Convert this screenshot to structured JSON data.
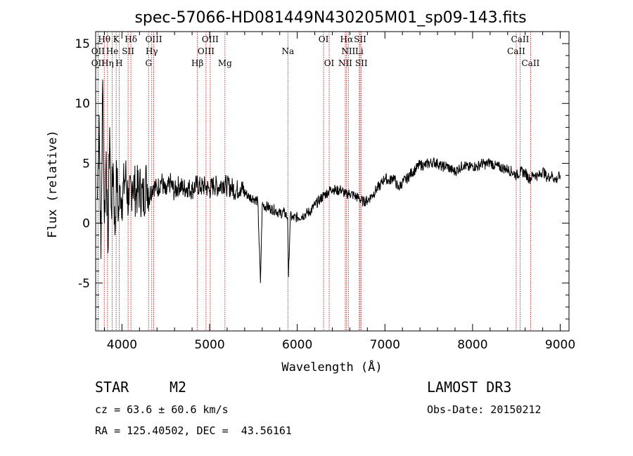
{
  "chart_data": {
    "type": "line",
    "title": "spec-57066-HD081449N430205M01_sp09-143.fits",
    "xlabel": "Wavelength (Å)",
    "ylabel": "Flux (relative)",
    "xlim": [
      3700,
      9100
    ],
    "ylim": [
      -9,
      16
    ],
    "x_ticks": [
      4000,
      5000,
      6000,
      7000,
      8000,
      9000
    ],
    "y_ticks": [
      -5,
      0,
      5,
      10,
      15
    ],
    "grid": false,
    "legend": "none",
    "line_color": "#000000",
    "marker_color": "#c00000",
    "spectrum": {
      "x": [
        3720,
        3740,
        3760,
        3780,
        3800,
        3820,
        3840,
        3860,
        3880,
        3900,
        3920,
        3940,
        3960,
        3980,
        4000,
        4040,
        4080,
        4120,
        4160,
        4200,
        4240,
        4280,
        4320,
        4360,
        4400,
        4450,
        4500,
        4550,
        4600,
        4650,
        4700,
        4750,
        4800,
        4850,
        4900,
        4950,
        5000,
        5050,
        5100,
        5150,
        5200,
        5250,
        5300,
        5350,
        5400,
        5450,
        5500,
        5550,
        5580,
        5600,
        5650,
        5700,
        5750,
        5800,
        5850,
        5890,
        5900,
        5920,
        5950,
        6000,
        6050,
        6100,
        6150,
        6200,
        6250,
        6300,
        6350,
        6400,
        6450,
        6500,
        6550,
        6600,
        6650,
        6700,
        6750,
        6800,
        6850,
        6900,
        6950,
        7000,
        7050,
        7100,
        7150,
        7200,
        7250,
        7300,
        7350,
        7400,
        7450,
        7500,
        7550,
        7600,
        7650,
        7700,
        7750,
        7800,
        7850,
        7900,
        7950,
        8000,
        8050,
        8100,
        8150,
        8200,
        8250,
        8300,
        8350,
        8400,
        8450,
        8500,
        8550,
        8600,
        8650,
        8700,
        8750,
        8800,
        8850,
        8900,
        8950,
        9000
      ],
      "y": [
        2.0,
        9.0,
        -3.0,
        12.0,
        0.0,
        6.0,
        -2.5,
        8.0,
        1.0,
        5.0,
        -1.0,
        4.5,
        0.5,
        3.0,
        2.0,
        4.0,
        1.5,
        3.5,
        2.5,
        3.0,
        2.0,
        3.5,
        2.5,
        3.2,
        2.8,
        3.6,
        2.4,
        3.4,
        2.6,
        3.2,
        2.9,
        3.0,
        2.8,
        3.2,
        3.0,
        3.1,
        2.8,
        3.2,
        3.0,
        3.4,
        3.1,
        3.0,
        2.7,
        3.0,
        2.6,
        2.2,
        2.1,
        1.8,
        -5.0,
        1.5,
        1.4,
        1.2,
        1.1,
        0.8,
        0.9,
        0.5,
        -4.5,
        0.6,
        0.4,
        0.5,
        0.6,
        0.8,
        1.0,
        1.5,
        1.9,
        2.3,
        2.6,
        2.9,
        2.7,
        2.8,
        2.4,
        2.5,
        2.3,
        2.1,
        1.8,
        1.9,
        2.3,
        2.8,
        3.2,
        3.8,
        3.5,
        3.9,
        2.9,
        3.4,
        3.7,
        4.2,
        4.5,
        4.9,
        4.8,
        5.0,
        5.1,
        5.0,
        4.7,
        4.8,
        4.5,
        4.3,
        4.6,
        4.9,
        4.6,
        4.8,
        4.7,
        5.0,
        4.9,
        5.1,
        4.8,
        4.7,
        4.6,
        4.5,
        4.3,
        4.0,
        4.3,
        4.2,
        3.7,
        4.1,
        3.9,
        4.4,
        3.8,
        4.0,
        3.6,
        4.0
      ]
    },
    "lines": [
      {
        "label": "Hθ",
        "x": 3798,
        "row": 0
      },
      {
        "label": "K",
        "x": 3934,
        "row": 0
      },
      {
        "label": "Hδ",
        "x": 4102,
        "row": 0
      },
      {
        "label": "OIII",
        "x": 4363,
        "row": 0
      },
      {
        "label": "OIII",
        "x": 5007,
        "row": 0
      },
      {
        "label": "OI",
        "x": 6300,
        "row": 0
      },
      {
        "label": "Hα",
        "x": 6563,
        "row": 0
      },
      {
        "label": "SII",
        "x": 6717,
        "row": 0
      },
      {
        "label": "CaII",
        "x": 8542,
        "row": 0
      },
      {
        "label": "OII",
        "x": 3727,
        "row": 1
      },
      {
        "label": "He",
        "x": 3889,
        "row": 1
      },
      {
        "label": "SII",
        "x": 4070,
        "row": 1
      },
      {
        "label": "Hγ",
        "x": 4340,
        "row": 1
      },
      {
        "label": "OIII",
        "x": 4959,
        "row": 1
      },
      {
        "label": "Na",
        "x": 5893,
        "row": 1
      },
      {
        "label": "NII",
        "x": 6583,
        "row": 1
      },
      {
        "label": "Li",
        "x": 6708,
        "row": 1
      },
      {
        "label": "CaII",
        "x": 8498,
        "row": 1
      },
      {
        "label": "OII",
        "x": 3727,
        "row": 2
      },
      {
        "label": "Hη",
        "x": 3835,
        "row": 2
      },
      {
        "label": "H",
        "x": 3968,
        "row": 2
      },
      {
        "label": "G",
        "x": 4304,
        "row": 2
      },
      {
        "label": "Hβ",
        "x": 4861,
        "row": 2
      },
      {
        "label": "Mg",
        "x": 5175,
        "row": 2
      },
      {
        "label": "OI",
        "x": 6364,
        "row": 2
      },
      {
        "label": "NII",
        "x": 6548,
        "row": 2
      },
      {
        "label": "SII",
        "x": 6731,
        "row": 2
      },
      {
        "label": "CaII",
        "x": 8662,
        "row": 2
      }
    ]
  },
  "info": {
    "class": "STAR",
    "subclass": "M2",
    "survey": "LAMOST DR3",
    "cz": "cz = 63.6 ± 60.6 km/s",
    "obs_date": "Obs-Date: 20150212",
    "coords": "RA = 125.40502, DEC =  43.56161"
  }
}
